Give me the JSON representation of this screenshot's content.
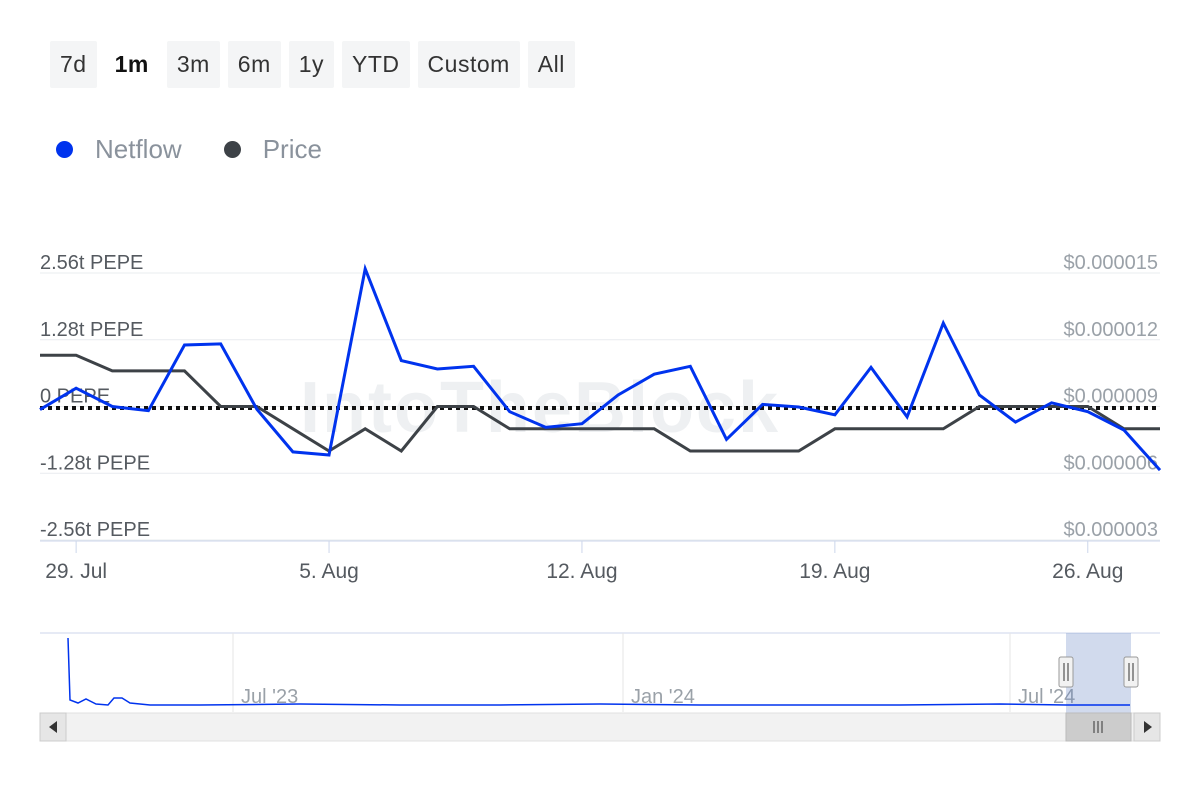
{
  "range_selector": {
    "buttons": [
      "7d",
      "1m",
      "3m",
      "6m",
      "1y",
      "YTD",
      "Custom",
      "All"
    ],
    "active": "1m"
  },
  "legend": [
    {
      "label": "Netflow",
      "color": "#0033ee"
    },
    {
      "label": "Price",
      "color": "#3d4247"
    }
  ],
  "watermark": "IntoTheBlock",
  "chart_data": {
    "type": "line",
    "x_start": "2024-07-28",
    "x_ticks": [
      "29. Jul",
      "5. Aug",
      "12. Aug",
      "19. Aug",
      "26. Aug"
    ],
    "left_axis": {
      "tick_labels": [
        "2.56t PEPE",
        "1.28t PEPE",
        "0 PEPE",
        "-1.28t PEPE",
        "-2.56t PEPE"
      ],
      "ylim": [
        -2.56,
        2.56
      ],
      "unit": "t PEPE"
    },
    "right_axis": {
      "tick_labels": [
        "$0.000015",
        "$0.000012",
        "$0.000009",
        "$0.000006",
        "$0.000003"
      ],
      "ylim": [
        3e-06,
        1.5e-05
      ]
    },
    "zero_line": {
      "value": 0,
      "style": "dotted"
    },
    "series": [
      {
        "name": "Netflow",
        "axis": "left",
        "color": "#0033ee",
        "values": [
          -0.06,
          0.35,
          0.0,
          -0.08,
          1.18,
          1.2,
          -0.05,
          -0.87,
          -0.93,
          2.64,
          0.88,
          0.72,
          0.77,
          -0.1,
          -0.4,
          -0.33,
          0.22,
          0.62,
          0.77,
          -0.63,
          0.04,
          -0.01,
          -0.16,
          0.75,
          -0.2,
          1.6,
          0.22,
          -0.3,
          0.07,
          -0.1,
          -0.45,
          -1.22
        ]
      },
      {
        "name": "Price",
        "axis": "right",
        "color": "#3d4247",
        "values": [
          1.13e-05,
          1.13e-05,
          1.06e-05,
          1.06e-05,
          1.06e-05,
          9e-06,
          9e-06,
          8e-06,
          7e-06,
          8e-06,
          7e-06,
          9e-06,
          9e-06,
          8e-06,
          8e-06,
          8e-06,
          8e-06,
          8e-06,
          7e-06,
          7e-06,
          7e-06,
          7e-06,
          8e-06,
          8e-06,
          8e-06,
          8e-06,
          9e-06,
          9e-06,
          9e-06,
          9e-06,
          8e-06,
          8e-06
        ]
      }
    ],
    "grid": true
  },
  "navigator": {
    "labels": [
      "Jul '23",
      "Jan '24",
      "Jul '24"
    ]
  }
}
